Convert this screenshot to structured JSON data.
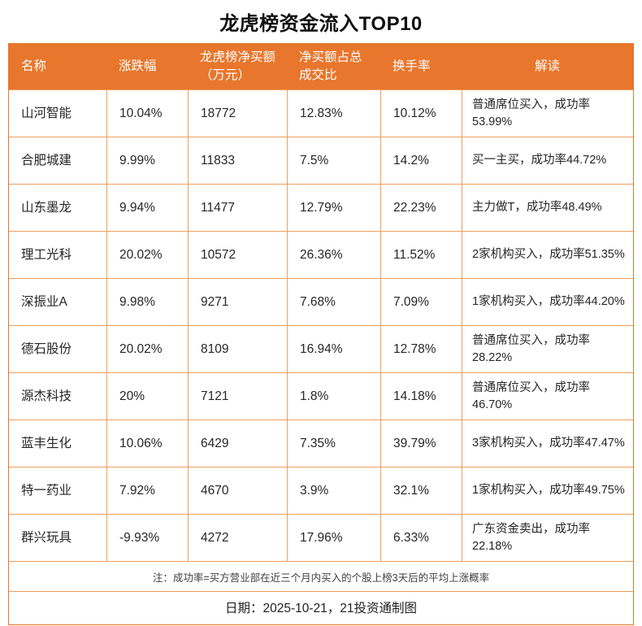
{
  "title": "龙虎榜资金流入TOP10",
  "accent_color": "#e8762c",
  "grid_color": "#f09e5c",
  "chart_data": {
    "type": "table",
    "title": "龙虎榜资金流入TOP10",
    "columns": [
      "名称",
      "涨跌幅",
      "龙虎榜净买额（万元）",
      "净买额占总成交比",
      "换手率",
      "解读"
    ],
    "rows": [
      {
        "name": "山河智能",
        "change": "10.04%",
        "net_buy": "18772",
        "net_buy_ratio": "12.83%",
        "turnover": "10.12%",
        "comment": "普通席位买入，成功率53.99%"
      },
      {
        "name": "合肥城建",
        "change": "9.99%",
        "net_buy": "11833",
        "net_buy_ratio": "7.5%",
        "turnover": "14.2%",
        "comment": "买一主买，成功率44.72%"
      },
      {
        "name": "山东墨龙",
        "change": "9.94%",
        "net_buy": "11477",
        "net_buy_ratio": "12.79%",
        "turnover": "22.23%",
        "comment": "主力做T，成功率48.49%"
      },
      {
        "name": "理工光科",
        "change": "20.02%",
        "net_buy": "10572",
        "net_buy_ratio": "26.36%",
        "turnover": "11.52%",
        "comment": "2家机构买入，成功率51.35%"
      },
      {
        "name": "深振业A",
        "change": "9.98%",
        "net_buy": "9271",
        "net_buy_ratio": "7.68%",
        "turnover": "7.09%",
        "comment": "1家机构买入，成功率44.20%"
      },
      {
        "name": "德石股份",
        "change": "20.02%",
        "net_buy": "8109",
        "net_buy_ratio": "16.94%",
        "turnover": "12.78%",
        "comment": "普通席位买入，成功率28.22%"
      },
      {
        "name": "源杰科技",
        "change": "20%",
        "net_buy": "7121",
        "net_buy_ratio": "1.8%",
        "turnover": "14.18%",
        "comment": "普通席位买入，成功率46.70%"
      },
      {
        "name": "蓝丰生化",
        "change": "10.06%",
        "net_buy": "6429",
        "net_buy_ratio": "7.35%",
        "turnover": "39.79%",
        "comment": "3家机构买入，成功率47.47%"
      },
      {
        "name": "特一药业",
        "change": "7.92%",
        "net_buy": "4670",
        "net_buy_ratio": "3.9%",
        "turnover": "32.1%",
        "comment": "1家机构买入，成功率49.75%"
      },
      {
        "name": "群兴玩具",
        "change": "-9.93%",
        "net_buy": "4272",
        "net_buy_ratio": "17.96%",
        "turnover": "6.33%",
        "comment": "广东资金卖出，成功率22.18%"
      }
    ]
  },
  "footer": {
    "note": "注：成功率=买方营业部在近三个月内买入的个股上榜3天后的平均上涨概率",
    "date_line": "日期：2025-10-21，21投资通制图"
  }
}
